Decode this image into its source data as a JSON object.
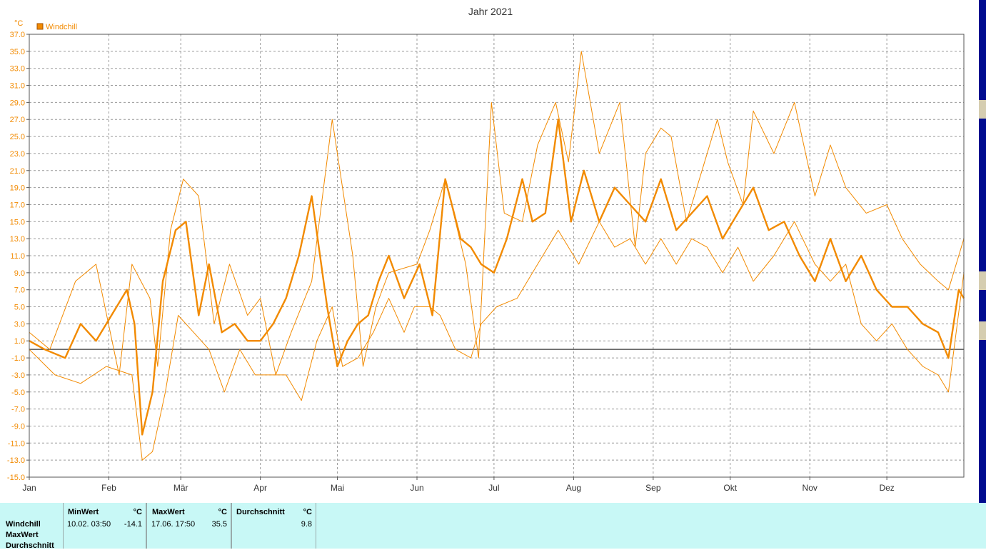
{
  "chart_data": {
    "type": "line",
    "title": "Jahr 2021",
    "ylabel": "°C",
    "ylim": [
      -15,
      37
    ],
    "y_ticks": [
      "37.0",
      "35.0",
      "33.0",
      "31.0",
      "29.0",
      "27.0",
      "25.0",
      "23.0",
      "21.0",
      "19.0",
      "17.0",
      "15.0",
      "13.0",
      "11.0",
      "9.0",
      "7.0",
      "5.0",
      "3.0",
      "1.0",
      "-1.0",
      "-3.0",
      "-5.0",
      "-7.0",
      "-9.0",
      "-11.0",
      "-13.0",
      "-15.0"
    ],
    "months": [
      "Jan",
      "Feb",
      "Mär",
      "Apr",
      "Mai",
      "Jun",
      "Jul",
      "Aug",
      "Sep",
      "Okt",
      "Nov",
      "Dez"
    ],
    "grid": true,
    "legend": "top-left",
    "zero_line": 0,
    "colors": {
      "series": "#f28a00",
      "grid": "#9a9a9a",
      "axis": "#000000",
      "zero": "#555555"
    },
    "series": [
      {
        "name": "Windchill",
        "role": "max",
        "x_day": [
          0,
          8,
          18,
          26,
          35,
          40,
          47,
          50,
          55,
          60,
          66,
          72,
          78,
          85,
          90,
          96,
          102,
          110,
          118,
          126,
          130,
          135,
          140,
          151,
          156,
          162,
          170,
          175,
          180,
          185,
          192,
          198,
          205,
          210,
          215,
          222,
          230,
          236,
          240,
          246,
          250,
          256,
          262,
          268,
          272,
          278,
          282,
          290,
          298,
          306,
          312,
          318,
          326,
          334,
          340,
          347,
          354,
          358,
          364
        ],
        "y": [
          2,
          0,
          8,
          10,
          -3,
          10,
          6,
          -2,
          14,
          20,
          18,
          3,
          10,
          4,
          6,
          -3,
          2,
          8,
          27,
          11,
          -2,
          5,
          9,
          10,
          14,
          20,
          10,
          -1,
          29,
          16,
          15,
          24,
          29,
          22,
          35,
          23,
          29,
          12,
          23,
          26,
          25,
          15,
          21,
          27,
          22,
          17,
          28,
          23,
          29,
          18,
          24,
          19,
          16,
          17,
          13,
          10,
          8,
          7,
          13
        ]
      },
      {
        "name": "Windchill",
        "role": "avg",
        "x_day": [
          0,
          6,
          14,
          20,
          26,
          32,
          38,
          41,
          44,
          48,
          52,
          57,
          61,
          66,
          70,
          75,
          80,
          85,
          90,
          95,
          100,
          105,
          110,
          116,
          120,
          124,
          128,
          132,
          136,
          140,
          146,
          152,
          157,
          162,
          168,
          172,
          176,
          181,
          186,
          192,
          196,
          201,
          206,
          211,
          216,
          222,
          228,
          234,
          240,
          246,
          252,
          258,
          264,
          270,
          276,
          282,
          288,
          294,
          300,
          306,
          312,
          318,
          324,
          330,
          336,
          342,
          348,
          354,
          358,
          362,
          364
        ],
        "y": [
          1,
          0,
          -1,
          3,
          1,
          4,
          7,
          3,
          -10,
          -5,
          8,
          14,
          15,
          4,
          10,
          2,
          3,
          1,
          1,
          3,
          6,
          11,
          18,
          5,
          -2,
          1,
          3,
          4,
          8,
          11,
          6,
          10,
          4,
          20,
          13,
          12,
          10,
          9,
          13,
          20,
          15,
          16,
          27,
          15,
          21,
          15,
          19,
          17,
          15,
          20,
          14,
          16,
          18,
          13,
          16,
          19,
          14,
          15,
          11,
          8,
          13,
          8,
          11,
          7,
          5,
          5,
          3,
          2,
          -1,
          7,
          6
        ]
      },
      {
        "name": "Windchill",
        "role": "min",
        "x_day": [
          0,
          10,
          20,
          30,
          40,
          44,
          48,
          53,
          58,
          64,
          70,
          76,
          82,
          88,
          94,
          100,
          106,
          112,
          118,
          122,
          128,
          134,
          140,
          146,
          150,
          156,
          160,
          166,
          172,
          176,
          182,
          190,
          198,
          206,
          214,
          222,
          228,
          234,
          240,
          246,
          252,
          258,
          264,
          270,
          276,
          282,
          290,
          298,
          306,
          312,
          318,
          324,
          330,
          336,
          342,
          348,
          354,
          358,
          364
        ],
        "y": [
          0,
          -3,
          -4,
          -2,
          -3,
          -13,
          -12,
          -5,
          4,
          2,
          0,
          -5,
          0,
          -3,
          -3,
          -3,
          -6,
          1,
          5,
          -2,
          -1,
          2,
          6,
          2,
          5,
          5,
          4,
          0,
          -1,
          3,
          5,
          6,
          10,
          14,
          10,
          15,
          12,
          13,
          10,
          13,
          10,
          13,
          12,
          9,
          12,
          8,
          11,
          15,
          10,
          8,
          10,
          3,
          1,
          3,
          0,
          -2,
          -3,
          -5,
          9
        ]
      }
    ]
  },
  "stats": {
    "row_labels": [
      "Windchill",
      "MaxWert",
      "Durchschnitt"
    ],
    "min_header": "MinWert",
    "min_unit": "°C",
    "min_time": "10.02.  03:50",
    "min_value": "-14.1",
    "max_header": "MaxWert",
    "max_unit": "°C",
    "max_time": "17.06.  17:50",
    "max_value": "35.5",
    "avg_header": "Durchschnitt",
    "avg_unit": "°C",
    "avg_value": "9.8"
  }
}
